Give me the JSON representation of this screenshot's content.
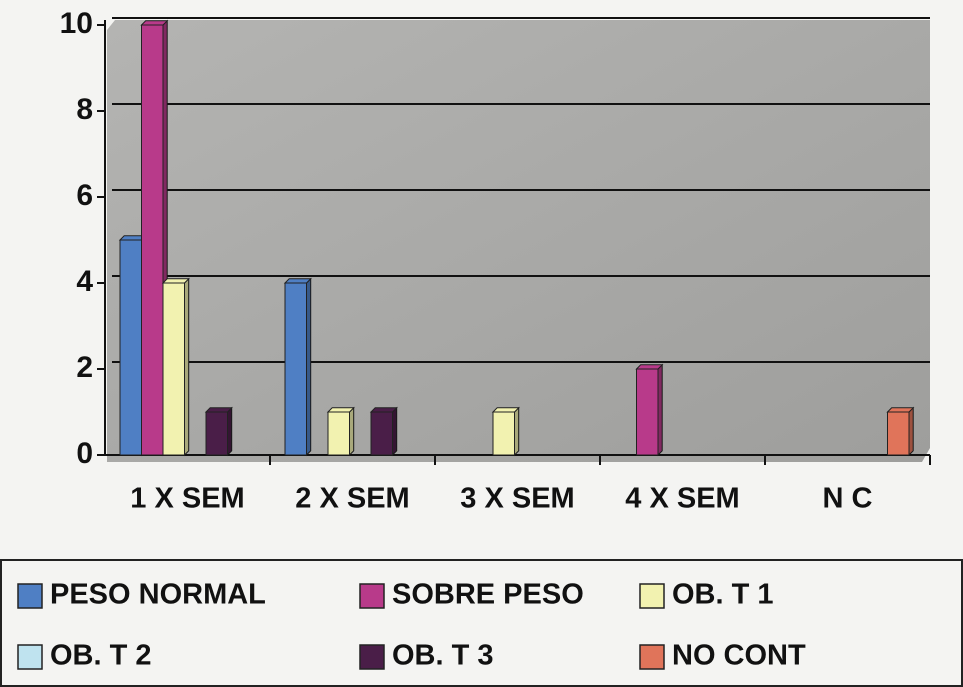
{
  "chart_data": {
    "type": "bar",
    "categories": [
      "1 X SEM",
      "2 X SEM",
      "3 X SEM",
      "4 X SEM",
      "N C"
    ],
    "series": [
      {
        "name": "PESO NORMAL",
        "color": "#4f7fc4",
        "values": [
          5,
          4,
          0,
          0,
          0
        ]
      },
      {
        "name": "SOBRE PESO",
        "color": "#b83a8a",
        "values": [
          10,
          0,
          0,
          2,
          0
        ]
      },
      {
        "name": "OB. T 1",
        "color": "#f2f2b0",
        "values": [
          4,
          1,
          1,
          0,
          0
        ]
      },
      {
        "name": "OB. T 2",
        "color": "#bfe3ef",
        "values": [
          0,
          0,
          0,
          0,
          0
        ]
      },
      {
        "name": "OB. T 3",
        "color": "#4a1e48",
        "values": [
          1,
          1,
          0,
          0,
          0
        ]
      },
      {
        "name": "NO CONT",
        "color": "#e0745a",
        "values": [
          0,
          0,
          0,
          0,
          1
        ]
      }
    ],
    "ylim": [
      0,
      10
    ],
    "yticks": [
      0,
      2,
      4,
      6,
      8,
      10
    ],
    "grid": true,
    "legend": "bottom"
  }
}
